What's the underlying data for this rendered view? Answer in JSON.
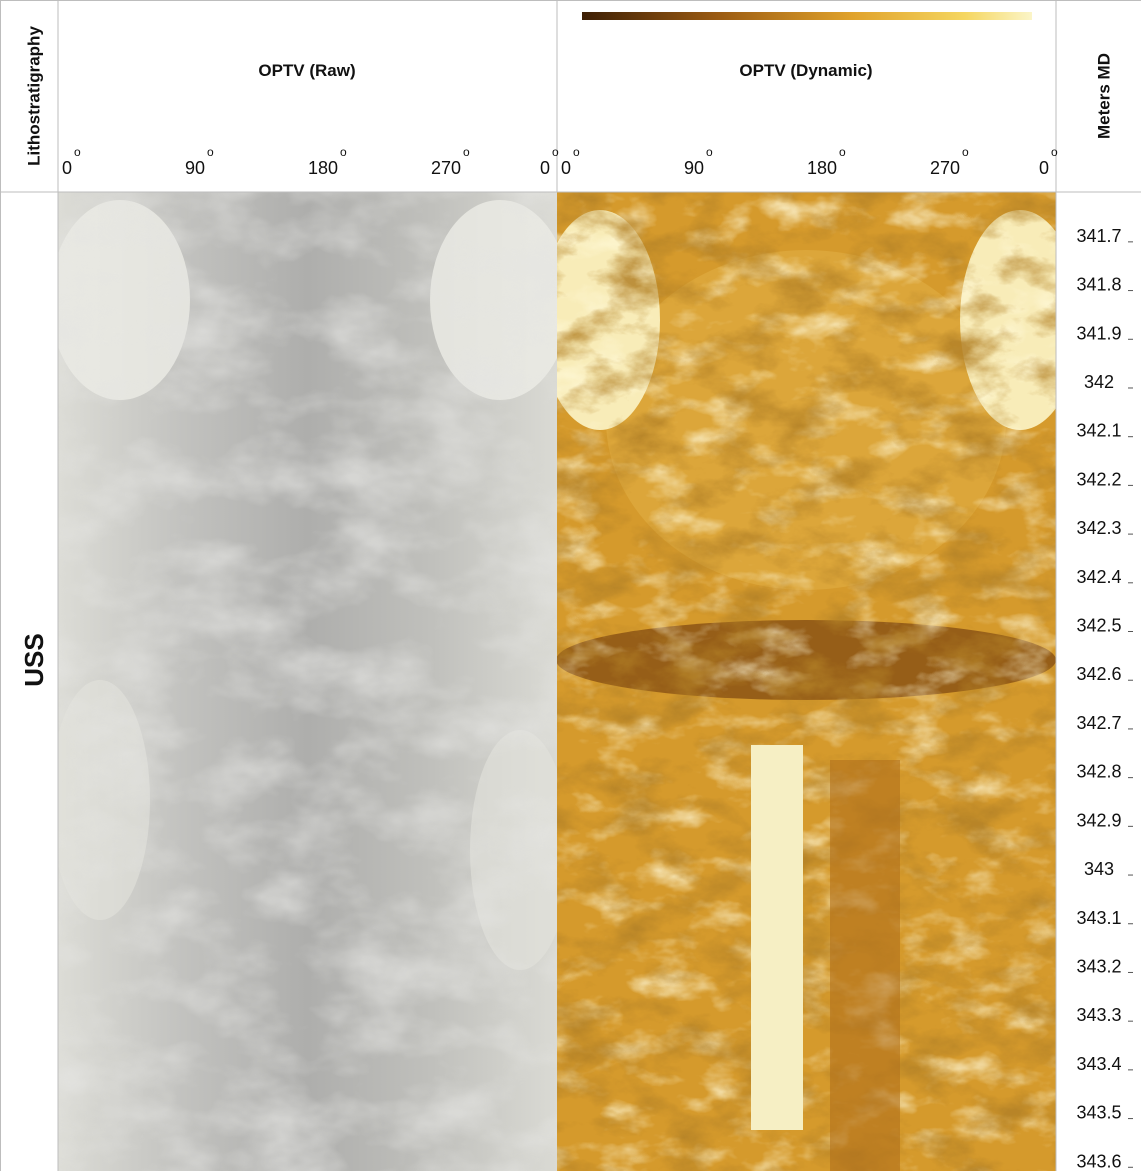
{
  "columns": {
    "lithostratigraphy": "Lithostratigraphy",
    "raw": "OPTV (Raw)",
    "dynamic": "OPTV (Dynamic)",
    "depth": "Meters MD"
  },
  "unit": "USS",
  "azimuth_labels": [
    "0",
    "90",
    "180",
    "270",
    "0"
  ],
  "degree_mark": "o",
  "depth_axis": {
    "range": [
      341.612,
      343.622
    ],
    "ticks": [
      341.7,
      341.8,
      341.9,
      342,
      342.1,
      342.2,
      342.3,
      342.4,
      342.5,
      342.6,
      342.7,
      342.8,
      342.9,
      343,
      343.1,
      343.2,
      343.3,
      343.4,
      343.5,
      343.6
    ]
  }
}
